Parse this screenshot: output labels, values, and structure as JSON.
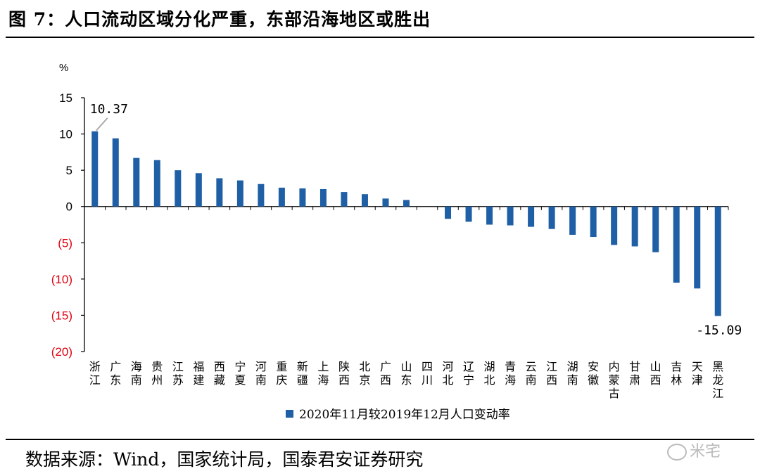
{
  "figure": {
    "title": "图 7：人口流动区域分化严重，东部沿海地区或胜出",
    "source": "数据来源：Wind，国家统计局，国泰君安证券研究",
    "watermark": "米宅"
  },
  "colors": {
    "bar": "#1f5fa5",
    "negative_tick": "#e0000f",
    "axis": "#000000",
    "leader_line": "#aaaaaa"
  },
  "chart_data": {
    "type": "bar",
    "ylabel": "%",
    "ylim": [
      -20,
      15
    ],
    "yticks": [
      15,
      10,
      5,
      0,
      -5,
      -10,
      -15,
      -20
    ],
    "ytick_labels": [
      "15",
      "10",
      "5",
      "0",
      "(5)",
      "(10)",
      "(15)",
      "(20)"
    ],
    "grid": false,
    "legend_position": "bottom",
    "categories": [
      "浙江",
      "广东",
      "海南",
      "贵州",
      "江苏",
      "福建",
      "西藏",
      "宁夏",
      "河南",
      "重庆",
      "新疆",
      "上海",
      "陕西",
      "北京",
      "广西",
      "山东",
      "四川",
      "河北",
      "辽宁",
      "湖北",
      "青海",
      "云南",
      "江西",
      "湖南",
      "安徽",
      "内蒙古",
      "甘肃",
      "山西",
      "吉林",
      "天津",
      "黑龙江"
    ],
    "series": [
      {
        "name": "2020年11月较2019年12月人口变动率",
        "values": [
          10.37,
          9.4,
          6.7,
          6.4,
          5.0,
          4.6,
          3.9,
          3.6,
          3.1,
          2.6,
          2.5,
          2.4,
          2.0,
          1.7,
          1.1,
          0.9,
          0.0,
          -1.7,
          -2.1,
          -2.5,
          -2.6,
          -2.8,
          -3.1,
          -3.9,
          -4.2,
          -5.3,
          -5.5,
          -6.3,
          -10.5,
          -11.3,
          -15.09
        ]
      }
    ],
    "data_labels": [
      {
        "index": 0,
        "text": "10.37"
      },
      {
        "index": 30,
        "text": "-15.09"
      }
    ]
  }
}
